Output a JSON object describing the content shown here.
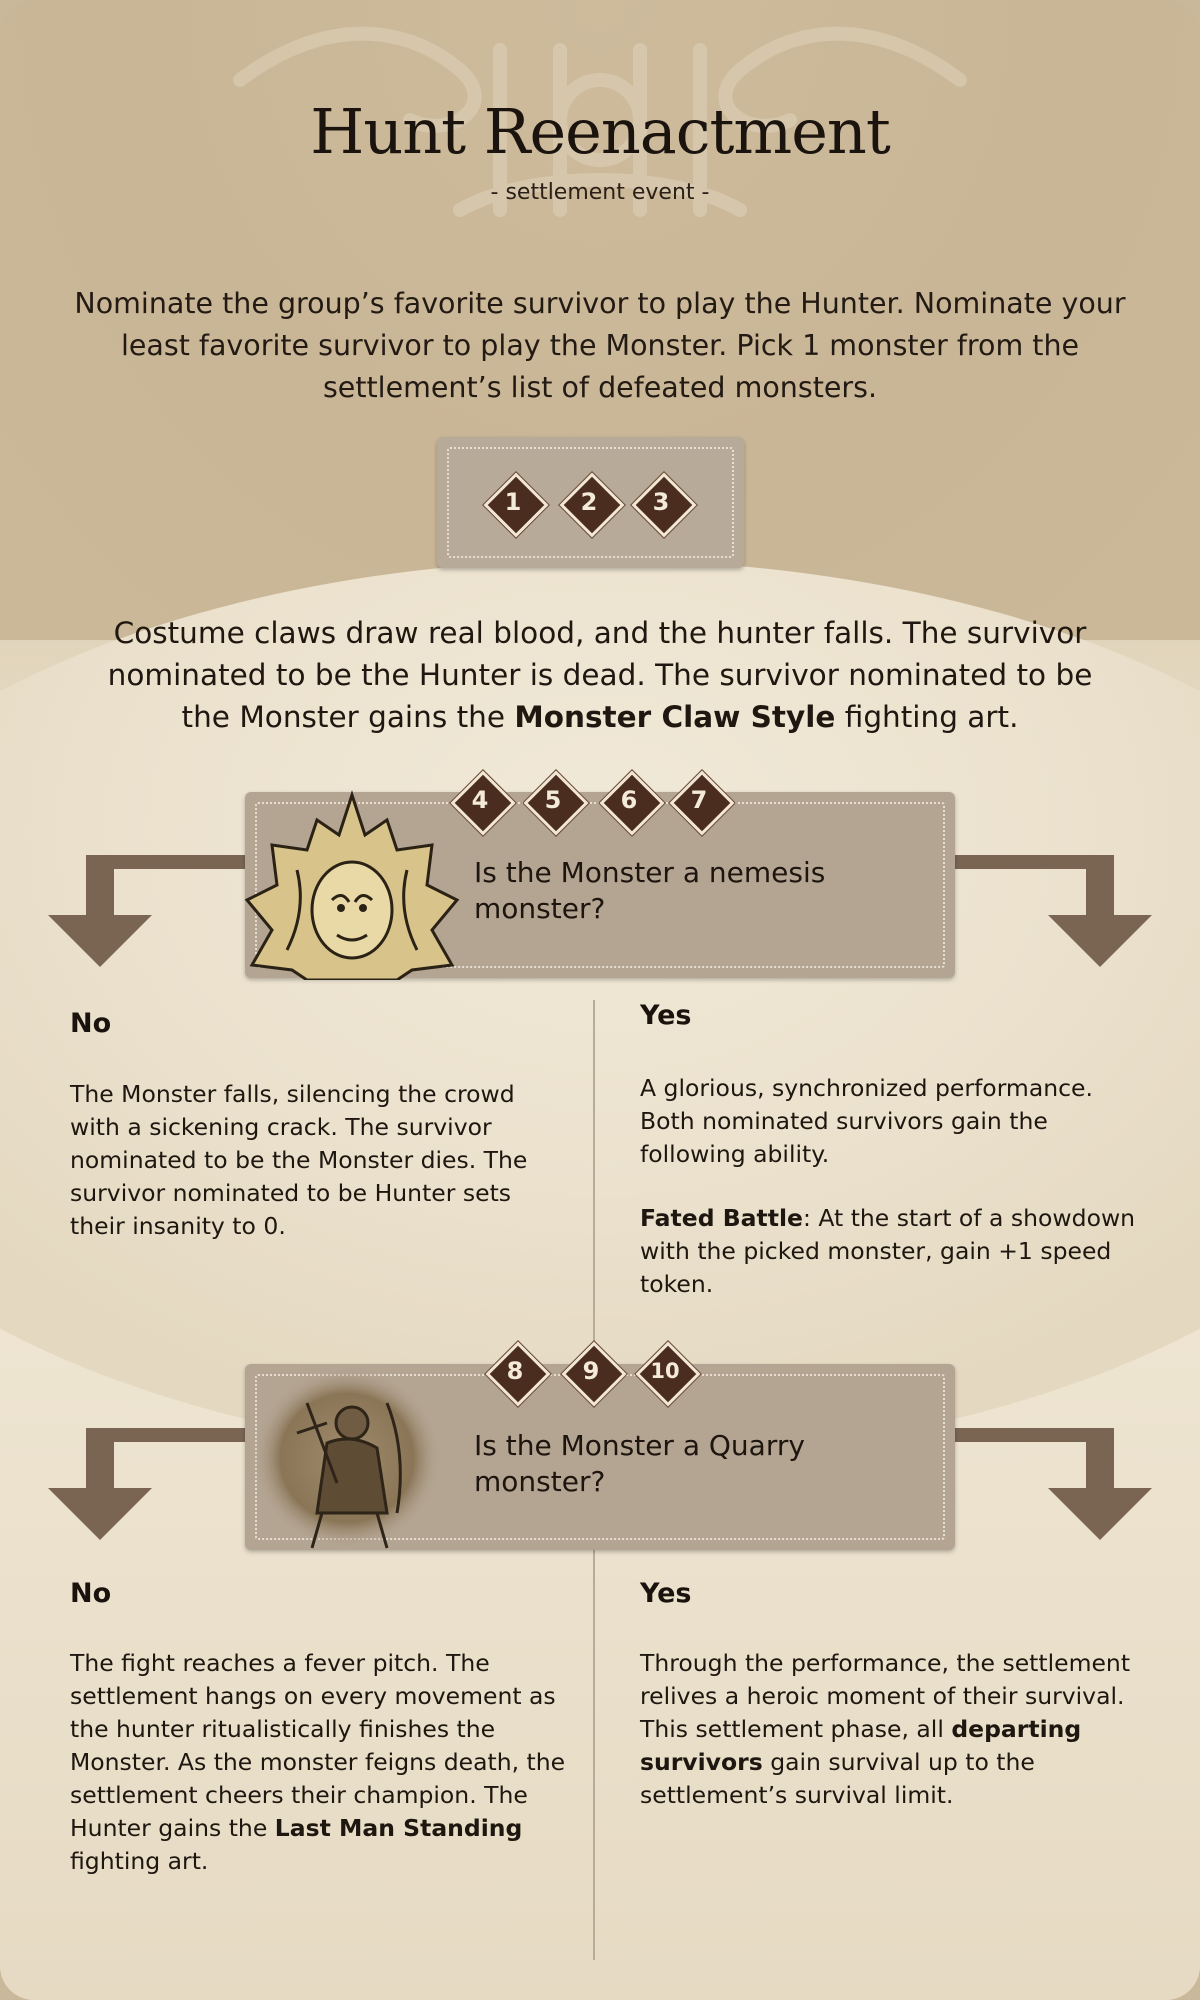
{
  "card": {
    "title": "Hunt Reenactment",
    "subtitle": "- settlement event -",
    "intro": "Nominate the group’s favorite survivor to play the Hunter. Nominate your least favorite survivor to play the Monster. Pick 1 monster from the settlement’s list of defeated monsters."
  },
  "roll_1_3": {
    "numbers": [
      "1",
      "2",
      "3"
    ],
    "result_pre": "Costume claws draw real blood, and the hunter falls.  The survivor nominated to be the Hunter is dead. The survivor nominated to be the Monster gains the ",
    "result_bold": "Monster Claw Style",
    "result_post": " fighting art."
  },
  "roll_4_7": {
    "numbers": [
      "4",
      "5",
      "6",
      "7"
    ],
    "question": "Is the Monster a nemesis monster?",
    "no": {
      "label": "No",
      "text": "The Monster falls, silencing the crowd with a sickening crack. The survivor nominated to be the Monster dies. The survivor nominated to be Hunter sets their insanity to 0."
    },
    "yes": {
      "label": "Yes",
      "text": "A glorious, synchronized performance. Both nominated survivors gain the following ability.",
      "ability_name": "Fated Battle",
      "ability_text": ": At the start of a showdown with the picked monster, gain +1 speed token."
    }
  },
  "roll_8_10": {
    "numbers": [
      "8",
      "9",
      "10"
    ],
    "question": "Is the Monster a Quarry monster?",
    "no": {
      "label": "No",
      "text_pre": "The fight reaches a fever pitch.  The settlement hangs on every movement as the hunter ritualistically finishes the Monster.  As the monster feigns death, the settlement cheers their champion. The Hunter gains the  ",
      "text_bold": "Last Man Standing",
      "text_post": " fighting art."
    },
    "yes": {
      "label": "Yes",
      "text_pre": "Through the performance, the settlement relives a heroic moment of their survival. This settlement phase, all ",
      "text_bold": "departing survivors",
      "text_post": " gain survival up to the settlement’s survival limit."
    }
  },
  "colors": {
    "diamond": "#4a2d1e",
    "box": "#b8aa98",
    "arrow": "#7a6553",
    "text": "#1e1710"
  },
  "icons": {
    "watermark": "ornament-watermark",
    "portrait_1": "horned-monster-portrait",
    "portrait_2": "hunter-portrait",
    "arrows": "branch-arrow-icon"
  }
}
